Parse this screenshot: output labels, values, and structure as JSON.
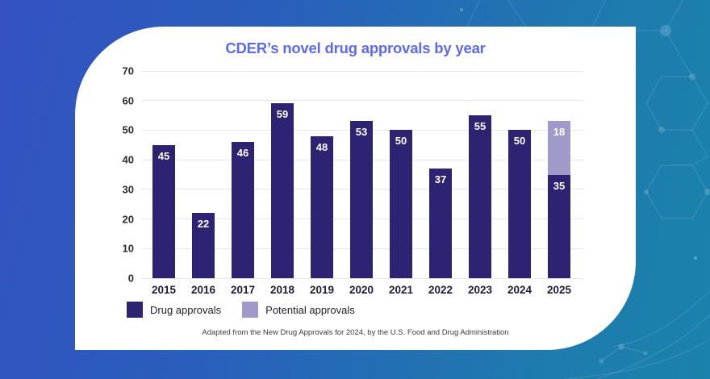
{
  "page": {
    "background_gradient": [
      "#3452c0",
      "#1b82ab"
    ]
  },
  "chart_data": {
    "type": "bar",
    "stacked": true,
    "title": "CDER’s novel drug approvals by year",
    "title_color": "#5b6af0",
    "categories": [
      "2015",
      "2016",
      "2017",
      "2018",
      "2019",
      "2020",
      "2021",
      "2022",
      "2023",
      "2024",
      "2025"
    ],
    "series": [
      {
        "name": "Drug approvals",
        "color": "#2e2273",
        "values": [
          45,
          22,
          46,
          59,
          48,
          53,
          50,
          37,
          55,
          50,
          35
        ]
      },
      {
        "name": "Potential approvals",
        "color": "#a09aca",
        "values": [
          0,
          0,
          0,
          0,
          0,
          0,
          0,
          0,
          0,
          0,
          18
        ]
      }
    ],
    "ylim": [
      0,
      70
    ],
    "yticks": [
      0,
      10,
      20,
      30,
      40,
      50,
      60,
      70
    ],
    "grid": true,
    "legend_position": "bottom-left",
    "value_labels": true,
    "value_label_color": "#ffffff",
    "source_note": "Adapted from the New Drug Approvals for 2024, by the U.S. Food and Drug Administration"
  }
}
